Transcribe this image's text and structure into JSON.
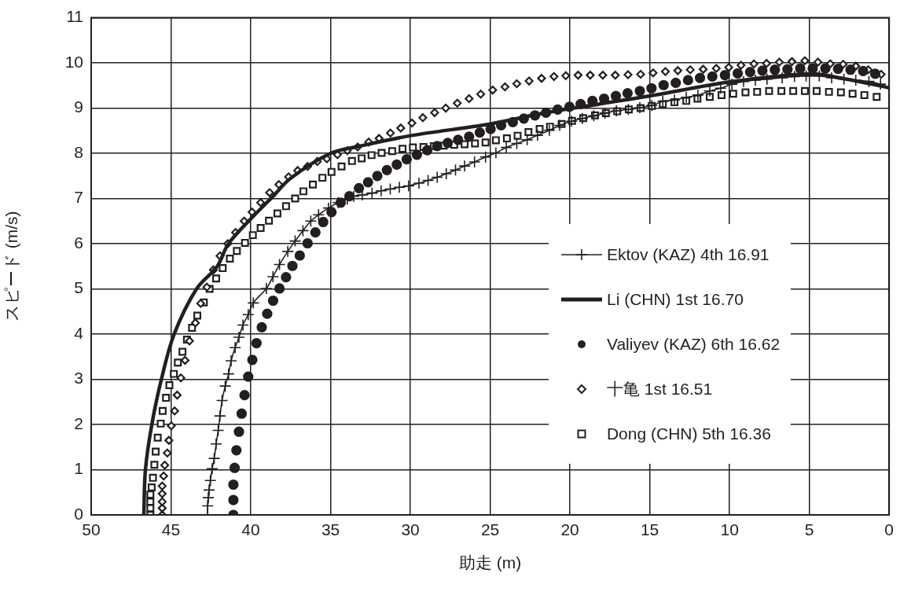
{
  "chart_data": {
    "type": "scatter",
    "xlabel": "助走 (m)",
    "ylabel": "スピード (m/s)",
    "xlim": [
      50,
      0
    ],
    "xticks": [
      50,
      45,
      40,
      35,
      30,
      25,
      20,
      15,
      10,
      5,
      0
    ],
    "ylim": [
      0,
      11
    ],
    "yticks": [
      0,
      1,
      2,
      3,
      4,
      5,
      6,
      7,
      8,
      9,
      10,
      11
    ],
    "grid": true,
    "legend": "bottom right",
    "series": [
      {
        "name": "Ektov (KAZ) 4th 16.91",
        "type": "line",
        "marker": "cross",
        "line_style": "solid",
        "color": "#231f20",
        "x": [
          42.7,
          42.7,
          42.66,
          42.61,
          42.53,
          42.42,
          42.29,
          42.17,
          42.04,
          41.93,
          41.8,
          41.6,
          41.39,
          41.23,
          40.98,
          40.74,
          40.49,
          40.16,
          39.84,
          39.02,
          38.61,
          38.2,
          37.68,
          37.22,
          36.73,
          36.24,
          35.75,
          35.13,
          34.52,
          33.95,
          33.55,
          33.01,
          32.4,
          31.83,
          31.26,
          30.69,
          30.11,
          29.46,
          28.89,
          28.32,
          27.75,
          27.17,
          26.6,
          25.98,
          25.29,
          24.64,
          23.99,
          23.33,
          22.68,
          22.03,
          21.29,
          20.64,
          19.9,
          19.22,
          18.51,
          17.81,
          17.09,
          16.34,
          15.62,
          14.87,
          14.18,
          13.45,
          12.71,
          11.98,
          11.24,
          10.56,
          9.85,
          9.12,
          8.38,
          7.65,
          6.7,
          5.93,
          5.2,
          4.38,
          3.6,
          2.83,
          2.09,
          1.27,
          0.54
        ],
        "values": [
          0,
          0.2,
          0.38,
          0.55,
          0.76,
          1.02,
          1.25,
          1.57,
          1.87,
          2.19,
          2.53,
          2.85,
          3.12,
          3.41,
          3.7,
          3.93,
          4.2,
          4.43,
          4.69,
          5.01,
          5.27,
          5.54,
          5.83,
          6.06,
          6.29,
          6.5,
          6.64,
          6.79,
          6.91,
          6.99,
          7.05,
          7.08,
          7.12,
          7.17,
          7.21,
          7.25,
          7.28,
          7.34,
          7.4,
          7.47,
          7.55,
          7.63,
          7.72,
          7.81,
          7.92,
          8.01,
          8.13,
          8.22,
          8.3,
          8.4,
          8.51,
          8.62,
          8.71,
          8.77,
          8.83,
          8.89,
          8.94,
          8.97,
          9.01,
          9.06,
          9.15,
          9.18,
          9.24,
          9.29,
          9.38,
          9.44,
          9.53,
          9.59,
          9.62,
          9.64,
          9.67,
          9.7,
          9.71,
          9.71,
          9.67,
          9.64,
          9.62,
          9.59,
          9.53
        ]
      },
      {
        "name": "Li (CHN) 1st 16.70",
        "type": "line",
        "marker": "none",
        "line_style": "solid",
        "color": "#231f20",
        "x": [
          46.7,
          46.6,
          46.2,
          45.6,
          44.8,
          43.4,
          42.1,
          41.4,
          40.0,
          38.6,
          37.5,
          35.0,
          33.3,
          30.0,
          25.0,
          21.5,
          18.0,
          15.0,
          10.0,
          5.0,
          2.8,
          0.0
        ],
        "values": [
          0,
          1,
          2,
          3,
          4,
          5,
          5.5,
          6,
          6.55,
          7.05,
          7.45,
          8,
          8.15,
          8.39,
          8.65,
          8.9,
          9.1,
          9.27,
          9.58,
          9.76,
          9.65,
          9.45
        ]
      },
      {
        "name": "Valiyev (KAZ) 6th 16.62",
        "type": "scatter",
        "marker": "circle",
        "color": "#231f20",
        "x": [
          41.09,
          41.09,
          41.09,
          41.01,
          40.9,
          40.74,
          40.57,
          40.39,
          40.16,
          39.9,
          39.64,
          39.31,
          38.97,
          38.6,
          38.2,
          37.79,
          37.39,
          36.93,
          36.44,
          35.95,
          35.46,
          34.94,
          34.36,
          33.82,
          33.22,
          32.65,
          32.07,
          31.47,
          30.85,
          30.23,
          29.59,
          28.94,
          28.32,
          27.66,
          27.01,
          26.32,
          25.65,
          24.97,
          24.31,
          23.58,
          22.89,
          22.19,
          21.5,
          20.77,
          20.03,
          19.33,
          18.59,
          17.86,
          17.12,
          16.39,
          15.62,
          14.89,
          14.13,
          13.37,
          12.6,
          11.85,
          11.08,
          10.29,
          9.49,
          8.71,
          7.94,
          7.16,
          6.37,
          5.57,
          4.79,
          4.0,
          3.2,
          2.42,
          1.63,
          0.87
        ],
        "values": [
          0,
          0.33,
          0.67,
          1.04,
          1.43,
          1.84,
          2.24,
          2.65,
          3.06,
          3.43,
          3.8,
          4.15,
          4.45,
          4.74,
          5.01,
          5.26,
          5.51,
          5.74,
          6.01,
          6.25,
          6.48,
          6.7,
          6.91,
          7.05,
          7.23,
          7.36,
          7.5,
          7.63,
          7.75,
          7.87,
          7.97,
          8.07,
          8.16,
          8.23,
          8.3,
          8.37,
          8.46,
          8.54,
          8.62,
          8.69,
          8.77,
          8.84,
          8.9,
          8.97,
          9.03,
          9.09,
          9.16,
          9.21,
          9.27,
          9.33,
          9.38,
          9.44,
          9.51,
          9.56,
          9.62,
          9.67,
          9.7,
          9.73,
          9.77,
          9.8,
          9.83,
          9.85,
          9.86,
          9.88,
          9.88,
          9.88,
          9.87,
          9.85,
          9.82,
          9.76
        ]
      },
      {
        "name": "十亀 1st 16.51",
        "type": "scatter",
        "marker": "diamond",
        "color": "#231f20",
        "x": [
          45.55,
          45.55,
          45.55,
          45.55,
          45.55,
          45.46,
          45.39,
          45.23,
          45.13,
          44.98,
          44.77,
          44.61,
          44.38,
          44.12,
          43.84,
          43.47,
          43.14,
          42.75,
          42.34,
          41.93,
          41.44,
          40.95,
          40.41,
          39.92,
          39.38,
          38.82,
          38.24,
          37.63,
          37.06,
          36.44,
          35.83,
          35.23,
          34.57,
          33.95,
          33.3,
          32.61,
          31.96,
          31.25,
          30.6,
          29.9,
          29.22,
          28.48,
          27.78,
          27.06,
          26.32,
          25.59,
          24.84,
          24.07,
          23.33,
          22.56,
          21.78,
          21.0,
          20.26,
          19.49,
          18.73,
          17.94,
          17.16,
          16.36,
          15.57,
          14.79,
          14.02,
          13.24,
          12.46,
          11.65,
          10.83,
          10.05,
          9.28,
          8.47,
          7.68,
          6.88,
          6.09,
          5.28,
          4.46,
          3.69,
          2.88,
          2.09,
          1.31,
          0.5
        ],
        "values": [
          0,
          0.15,
          0.29,
          0.47,
          0.64,
          0.86,
          1.1,
          1.37,
          1.65,
          1.97,
          2.3,
          2.65,
          3.03,
          3.42,
          3.85,
          4.25,
          4.68,
          5.04,
          5.42,
          5.73,
          6.0,
          6.25,
          6.5,
          6.7,
          6.91,
          7.13,
          7.31,
          7.48,
          7.62,
          7.71,
          7.82,
          7.88,
          7.97,
          8.06,
          8.14,
          8.25,
          8.33,
          8.45,
          8.56,
          8.67,
          8.79,
          8.9,
          9.0,
          9.11,
          9.21,
          9.31,
          9.4,
          9.47,
          9.54,
          9.6,
          9.66,
          9.7,
          9.72,
          9.73,
          9.73,
          9.73,
          9.73,
          9.74,
          9.75,
          9.78,
          9.81,
          9.83,
          9.85,
          9.86,
          9.88,
          9.9,
          9.95,
          9.98,
          9.99,
          10.02,
          10.03,
          10.05,
          10.02,
          9.98,
          9.97,
          9.93,
          9.85,
          9.75
        ]
      },
      {
        "name": "Dong (CHN) 5th 16.36",
        "type": "scatter",
        "marker": "square",
        "color": "#231f20",
        "x": [
          46.29,
          46.29,
          46.29,
          46.29,
          46.21,
          46.13,
          46.04,
          45.96,
          45.83,
          45.64,
          45.52,
          45.31,
          45.1,
          44.82,
          44.57,
          44.28,
          44.0,
          43.68,
          43.35,
          42.94,
          42.58,
          42.17,
          41.76,
          41.31,
          40.87,
          40.36,
          39.87,
          39.38,
          38.86,
          38.33,
          37.79,
          37.22,
          36.7,
          36.11,
          35.51,
          34.94,
          34.31,
          33.66,
          33.05,
          32.43,
          31.8,
          31.14,
          30.49,
          29.84,
          29.18,
          28.53,
          27.91,
          27.25,
          26.6,
          25.95,
          25.29,
          24.64,
          23.95,
          23.28,
          22.6,
          21.9,
          21.25,
          20.52,
          19.87,
          19.17,
          18.43,
          17.75,
          17.04,
          16.31,
          15.57,
          14.87,
          14.18,
          13.45,
          12.71,
          12.01,
          11.24,
          10.5,
          9.77,
          9.0,
          8.27,
          7.52,
          6.75,
          6.01,
          5.28,
          4.54,
          3.77,
          3.02,
          2.29,
          1.55,
          0.78
        ],
        "values": [
          0,
          0.15,
          0.29,
          0.45,
          0.61,
          0.82,
          1.11,
          1.4,
          1.71,
          2.02,
          2.3,
          2.59,
          2.87,
          3.12,
          3.37,
          3.61,
          3.88,
          4.14,
          4.41,
          4.7,
          5.0,
          5.23,
          5.46,
          5.67,
          5.84,
          6.02,
          6.19,
          6.35,
          6.51,
          6.67,
          6.83,
          7.0,
          7.16,
          7.31,
          7.46,
          7.59,
          7.71,
          7.83,
          7.89,
          7.96,
          8.01,
          8.05,
          8.1,
          8.13,
          8.14,
          8.16,
          8.17,
          8.19,
          8.2,
          8.22,
          8.24,
          8.29,
          8.33,
          8.39,
          8.47,
          8.54,
          8.59,
          8.65,
          8.72,
          8.78,
          8.84,
          8.89,
          8.93,
          8.97,
          9.0,
          9.05,
          9.09,
          9.13,
          9.16,
          9.21,
          9.25,
          9.29,
          9.32,
          9.35,
          9.36,
          9.38,
          9.38,
          9.38,
          9.38,
          9.38,
          9.36,
          9.35,
          9.32,
          9.29,
          9.25
        ]
      }
    ]
  }
}
